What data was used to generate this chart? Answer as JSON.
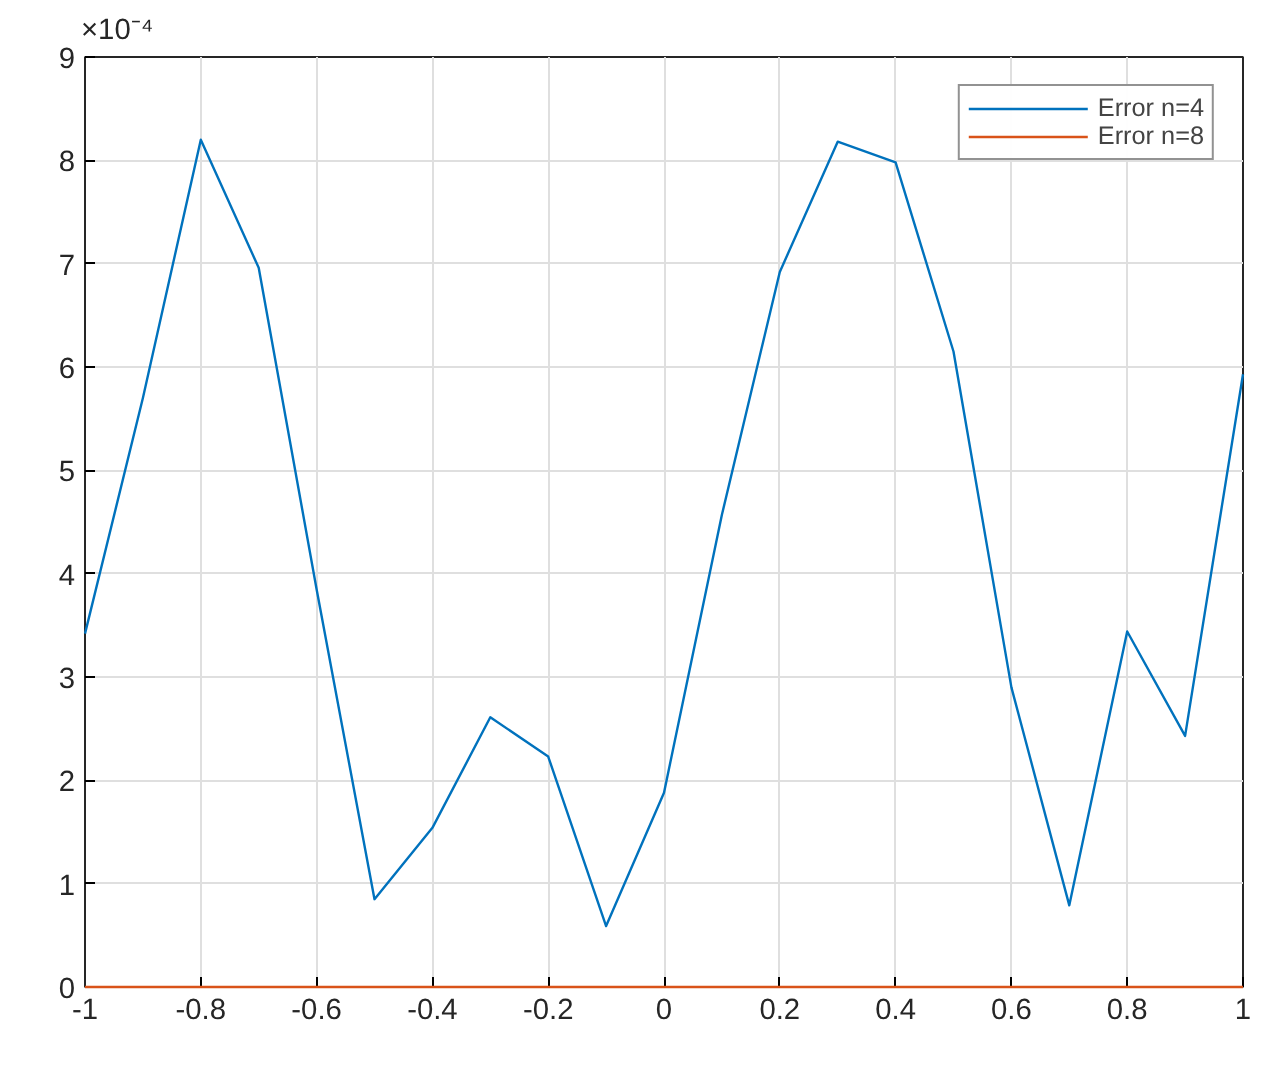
{
  "chart_data": {
    "type": "line",
    "x": [
      -1,
      -0.9,
      -0.8,
      -0.7,
      -0.6,
      -0.5,
      -0.4,
      -0.3,
      -0.2,
      -0.1,
      0,
      0.1,
      0.2,
      0.3,
      0.4,
      0.5,
      0.6,
      0.7,
      0.8,
      0.9,
      1
    ],
    "series": [
      {
        "name": "Error n=4",
        "color": "#0072bd",
        "values": [
          3.42,
          5.7,
          8.2,
          6.96,
          3.85,
          0.85,
          1.54,
          2.61,
          2.23,
          0.59,
          1.88,
          4.57,
          6.92,
          8.18,
          7.98,
          6.15,
          2.9,
          0.79,
          3.44,
          2.43,
          5.93
        ]
      },
      {
        "name": "Error n=8",
        "color": "#d95319",
        "values": [
          0,
          0,
          0,
          0,
          0,
          0,
          0,
          0,
          0,
          0,
          0,
          0,
          0,
          0,
          0,
          0,
          0,
          0,
          0,
          0,
          0
        ]
      }
    ],
    "xlim": [
      -1,
      1
    ],
    "xticks": [
      -1,
      -0.8,
      -0.6,
      -0.4,
      -0.2,
      0,
      0.2,
      0.4,
      0.6,
      0.8,
      1
    ],
    "ylim": [
      0,
      9
    ],
    "yticks": [
      0,
      1,
      2,
      3,
      4,
      5,
      6,
      7,
      8,
      9
    ],
    "annotations": [
      "×10⁻⁴"
    ],
    "grid": true,
    "legend": "top right",
    "marker": "none",
    "line_style": "solid"
  }
}
